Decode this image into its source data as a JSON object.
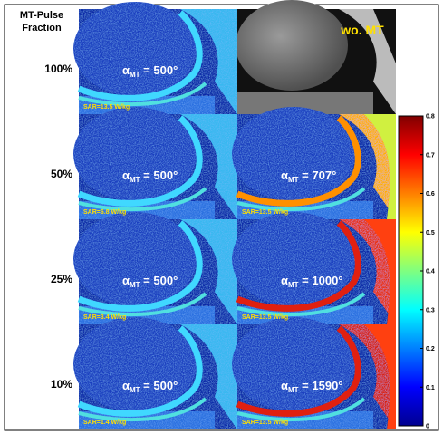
{
  "header": {
    "title_lines": [
      "MT-Pulse",
      "Fraction"
    ]
  },
  "reference": {
    "label": "wo. MT"
  },
  "rows": [
    {
      "fraction": "100%",
      "panels": [
        {
          "alpha": "α",
          "sub": "MT",
          "rest": " = 500°",
          "sar": "SAR=13.5 W/kg"
        }
      ]
    },
    {
      "fraction": "50%",
      "panels": [
        {
          "alpha": "α",
          "sub": "MT",
          "rest": " = 500°",
          "sar": "SAR=6.8 W/kg"
        },
        {
          "alpha": "α",
          "sub": "MT",
          "rest": " = 707°",
          "sar": "SAR=13.5 W/kg"
        }
      ]
    },
    {
      "fraction": "25%",
      "panels": [
        {
          "alpha": "α",
          "sub": "MT",
          "rest": " = 500°",
          "sar": "SAR=3.4 W/kg"
        },
        {
          "alpha": "α",
          "sub": "MT",
          "rest": " = 1000°",
          "sar": "SAR=13.5 W/kg"
        }
      ]
    },
    {
      "fraction": "10%",
      "panels": [
        {
          "alpha": "α",
          "sub": "MT",
          "rest": " = 500°",
          "sar": "SAR=1.4 W/kg"
        },
        {
          "alpha": "α",
          "sub": "MT",
          "rest": " = 1590°",
          "sar": "SAR=13.5 W/kg"
        }
      ]
    }
  ],
  "colorbar": {
    "lim": [
      0,
      0.8
    ],
    "ticks": [
      0,
      0.1,
      0.2,
      0.3,
      0.4,
      0.5,
      0.6,
      0.7,
      0.8
    ]
  }
}
